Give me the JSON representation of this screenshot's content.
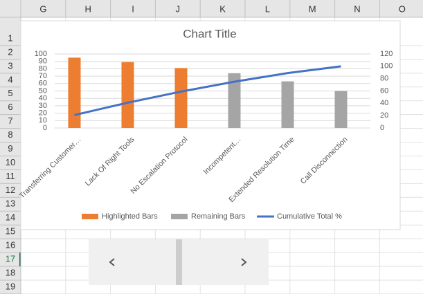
{
  "columns": [
    "G",
    "H",
    "I",
    "J",
    "K",
    "L",
    "M",
    "N",
    "O"
  ],
  "rows": [
    1,
    2,
    3,
    4,
    5,
    6,
    7,
    8,
    9,
    10,
    11,
    12,
    13,
    14,
    15,
    16,
    17,
    18,
    19
  ],
  "chart_data": {
    "type": "bar",
    "title": "Chart Title",
    "categories": [
      "Transferring Customer…",
      "Lack Of Right Tools",
      "No Escalation Protocol",
      "Incompetent…",
      "Extended Resolution Time",
      "Call Disconnection"
    ],
    "series": [
      {
        "name": "Highlighted Bars",
        "color": "#ed7d31",
        "values": [
          95,
          89,
          81,
          null,
          null,
          null
        ]
      },
      {
        "name": "Remaining Bars",
        "color": "#a5a5a5",
        "values": [
          null,
          null,
          null,
          74,
          63,
          50
        ]
      },
      {
        "name": "Cumulative Total %",
        "color": "#4472c4",
        "type": "line",
        "axis": "y2",
        "values": [
          21,
          41,
          59,
          75,
          89,
          100
        ]
      }
    ],
    "ylim": [
      0,
      100
    ],
    "yticks": [
      0,
      10,
      20,
      30,
      40,
      50,
      60,
      70,
      80,
      90,
      100
    ],
    "y2lim": [
      0,
      120
    ],
    "y2ticks": [
      0,
      20,
      40,
      60,
      80,
      100,
      120
    ],
    "grid": true,
    "legend": "bottom"
  }
}
